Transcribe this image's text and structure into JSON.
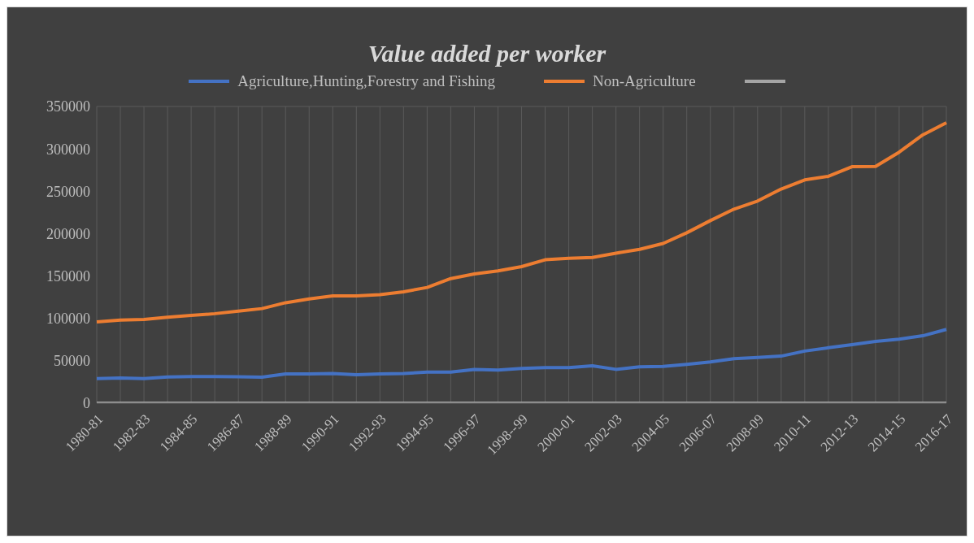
{
  "chart_data": {
    "type": "line",
    "title": "Value added per worker",
    "categories": [
      "1980-81",
      null,
      "1982-83",
      null,
      "1984-85",
      null,
      "1986-87",
      null,
      "1988-89",
      null,
      "1990-91",
      null,
      "1992-93",
      null,
      "1994-95",
      null,
      "1996-97",
      null,
      "1998--99",
      null,
      "2000-01",
      null,
      "2002-03",
      null,
      "2004-05",
      null,
      "2006-07",
      null,
      "2008-09",
      null,
      "2010-11",
      null,
      "2012-13",
      null,
      "2014-15",
      null,
      "2016-17"
    ],
    "series": [
      {
        "name": "Agriculture,Hunting,Forestry and Fishing",
        "color": "#4472c4",
        "values": [
          29100,
          29700,
          29100,
          30900,
          31500,
          31500,
          31200,
          30600,
          34500,
          34500,
          35100,
          33600,
          34500,
          35100,
          36600,
          36600,
          39900,
          39000,
          41100,
          42000,
          42000,
          44100,
          39900,
          43000,
          43500,
          45900,
          48600,
          52500,
          54000,
          55500,
          61500,
          65400,
          69000,
          72900,
          75600,
          79500,
          87000
        ]
      },
      {
        "name": "Non-Agriculture",
        "color": "#ed7d31",
        "values": [
          96000,
          98100,
          98700,
          101400,
          103500,
          105600,
          108600,
          111600,
          118500,
          123000,
          126600,
          126600,
          128100,
          131400,
          136500,
          147000,
          152400,
          156000,
          161100,
          169200,
          171000,
          171900,
          177000,
          181500,
          188400,
          201000,
          215400,
          228900,
          238500,
          252600,
          263400,
          267600,
          279000,
          279300,
          296100,
          316500,
          330900
        ]
      },
      {
        "color": "#a5a5a5",
        "values": [
          0,
          0,
          0,
          0,
          0,
          0,
          0,
          0,
          0,
          0,
          0,
          0,
          0,
          0,
          0,
          0,
          0,
          0,
          0,
          0,
          0,
          0,
          0,
          0,
          0,
          0,
          0,
          0,
          0,
          0,
          0,
          0,
          0,
          0,
          0,
          0,
          0
        ]
      }
    ],
    "ylim": [
      0,
      350000
    ],
    "yticks": [
      0,
      50000,
      100000,
      150000,
      200000,
      250000,
      300000,
      350000
    ],
    "grid": true,
    "legend": "top",
    "marker": "none",
    "line_style": "solid"
  }
}
